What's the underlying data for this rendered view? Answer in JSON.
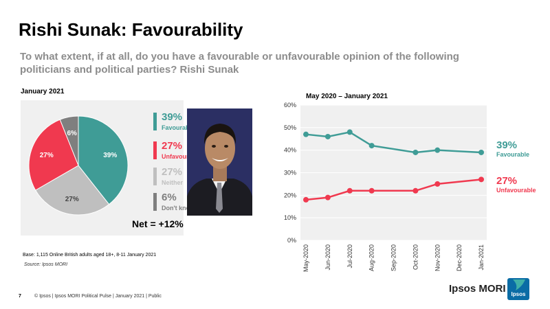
{
  "header": {
    "title": "Rishi Sunak: Favourability",
    "question": "To what extent, if at all, do you have a favourable or unfavourable opinion of the following politicians and political parties? Rishi Sunak"
  },
  "pie_section": {
    "period": "January 2021",
    "net": "Net = +12%",
    "legend": [
      {
        "pct": "39%",
        "label": "Favourable",
        "color": "#3f9c96"
      },
      {
        "pct": "27%",
        "label": "Unfavourable",
        "color": "#f0394f"
      },
      {
        "pct": "27%",
        "label": "Neither",
        "color": "#bfbfbf"
      },
      {
        "pct": "6%",
        "label": "Don't know",
        "color": "#7f7f7f"
      }
    ]
  },
  "line_section": {
    "period": "May 2020 – January 2021",
    "end_labels": [
      {
        "pct": "39%",
        "label": "Favourable",
        "color": "#3f9c96"
      },
      {
        "pct": "27%",
        "label": "Unfavourable",
        "color": "#f0394f"
      }
    ]
  },
  "chart_data": [
    {
      "type": "pie",
      "categories": [
        "Favourable",
        "Neither",
        "Unfavourable",
        "Don't know"
      ],
      "values": [
        39,
        27,
        27,
        6
      ],
      "labels": [
        "39%",
        "27%",
        "27%",
        "6%"
      ],
      "colors": [
        "#3f9c96",
        "#bfbfbf",
        "#f0394f",
        "#7f7f7f"
      ]
    },
    {
      "type": "line",
      "x": [
        "May-2020",
        "Jun-2020",
        "Jul-2020",
        "Aug-2020",
        "Sep-2020",
        "Oct-2020",
        "Nov-2020",
        "Dec-2020",
        "Jan-2021"
      ],
      "series": [
        {
          "name": "Favourable",
          "color": "#3f9c96",
          "values": [
            47,
            46,
            48,
            42,
            null,
            39,
            40,
            null,
            39
          ]
        },
        {
          "name": "Unfavourable",
          "color": "#f0394f",
          "values": [
            18,
            19,
            22,
            22,
            null,
            22,
            25,
            null,
            27
          ]
        }
      ],
      "ylim": [
        0,
        60
      ],
      "yticks": [
        "0%",
        "10%",
        "20%",
        "30%",
        "40%",
        "50%",
        "60%"
      ]
    }
  ],
  "footer": {
    "base": "Base: 1,115 Online British adults aged 18+, 8-11 January 2021",
    "source": "Source: Ipsos MORI",
    "page": "7",
    "text": "© Ipsos | Ipsos MORI Political Pulse | January 2021 | Public",
    "brand": "Ipsos MORI",
    "logo_text": "Ipsos"
  }
}
